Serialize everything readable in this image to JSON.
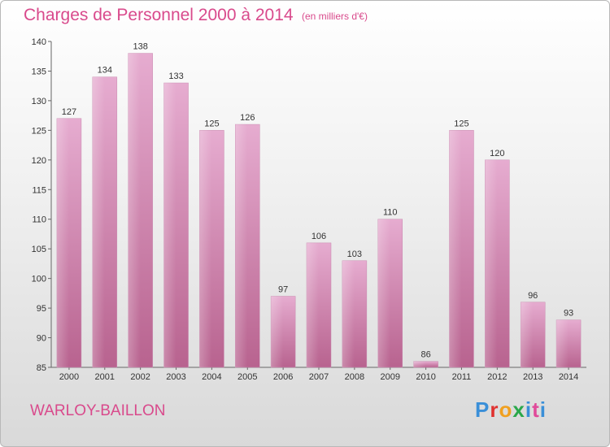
{
  "header": {
    "title": "Charges de Personnel 2000 à 2014",
    "subtitle": "(en milliers d'€)"
  },
  "footer": {
    "commune": "WARLOY-BAILLON",
    "logo_text": "Proxiti"
  },
  "colors": {
    "bar": "#d98fb8",
    "text_accent": "#d94a8c"
  },
  "chart_data": {
    "type": "bar",
    "title": "Charges de Personnel 2000 à 2014",
    "subtitle": "(en milliers d'€)",
    "categories": [
      "2000",
      "2001",
      "2002",
      "2003",
      "2004",
      "2005",
      "2006",
      "2007",
      "2008",
      "2009",
      "2010",
      "2011",
      "2012",
      "2013",
      "2014"
    ],
    "values": [
      127,
      134,
      138,
      133,
      125,
      126,
      97,
      106,
      103,
      110,
      86,
      125,
      120,
      96,
      93
    ],
    "ylim": [
      85,
      140
    ],
    "yticks": [
      85,
      90,
      95,
      100,
      105,
      110,
      115,
      120,
      125,
      130,
      135,
      140
    ],
    "grid": false,
    "legend": "none"
  }
}
